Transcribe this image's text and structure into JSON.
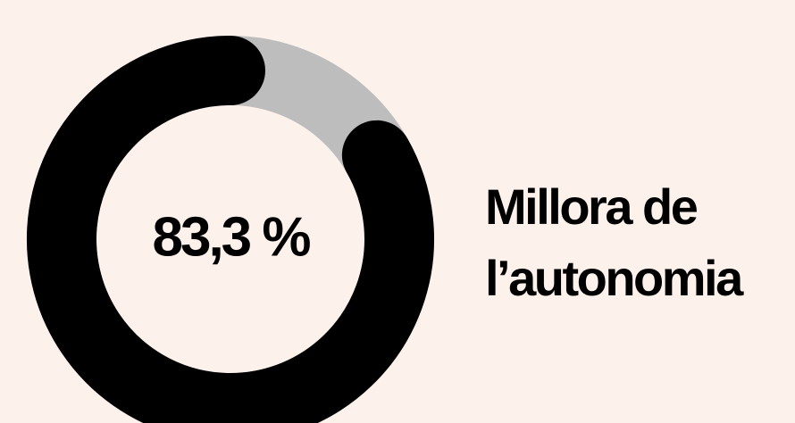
{
  "chart_data": {
    "type": "donut",
    "title": "Millora de l’autonomia",
    "values": [
      83.3
    ],
    "value_labels": [
      "83,3 %"
    ],
    "ylim": [
      0,
      100
    ],
    "color": "#000000",
    "track_color": "#bdbdbd"
  }
}
